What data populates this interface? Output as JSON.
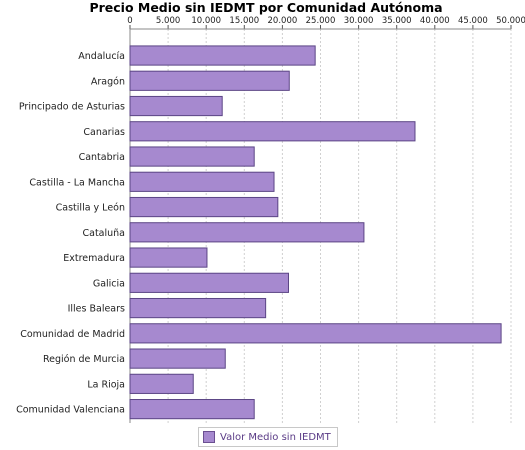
{
  "chart_data": {
    "type": "bar",
    "orientation": "horizontal",
    "title": "Precio Medio sin IEDMT por Comunidad Autónoma",
    "categories": [
      "Andalucía",
      "Aragón",
      "Principado de Asturias",
      "Canarias",
      "Cantabria",
      "Castilla - La Mancha",
      "Castilla y León",
      "Cataluña",
      "Extremadura",
      "Galicia",
      "Illes Balears",
      "Comunidad de Madrid",
      "Región de Murcia",
      "La Rioja",
      "Comunidad Valenciana"
    ],
    "series": [
      {
        "name": "Valor Medio sin IEDMT",
        "color": "#a689cf",
        "values": [
          24300,
          20900,
          12100,
          37400,
          16300,
          18900,
          19400,
          30700,
          10100,
          20800,
          17800,
          48700,
          12500,
          8300,
          16300
        ]
      }
    ],
    "x_ticks": [
      "0",
      "5.000",
      "10.000",
      "15.000",
      "20.000",
      "25.000",
      "30.000",
      "35.000",
      "40.000",
      "45.000",
      "50.000"
    ],
    "xlim": [
      0,
      50000
    ],
    "x_axis_position": "top",
    "grid": true,
    "legend": "bottom"
  }
}
